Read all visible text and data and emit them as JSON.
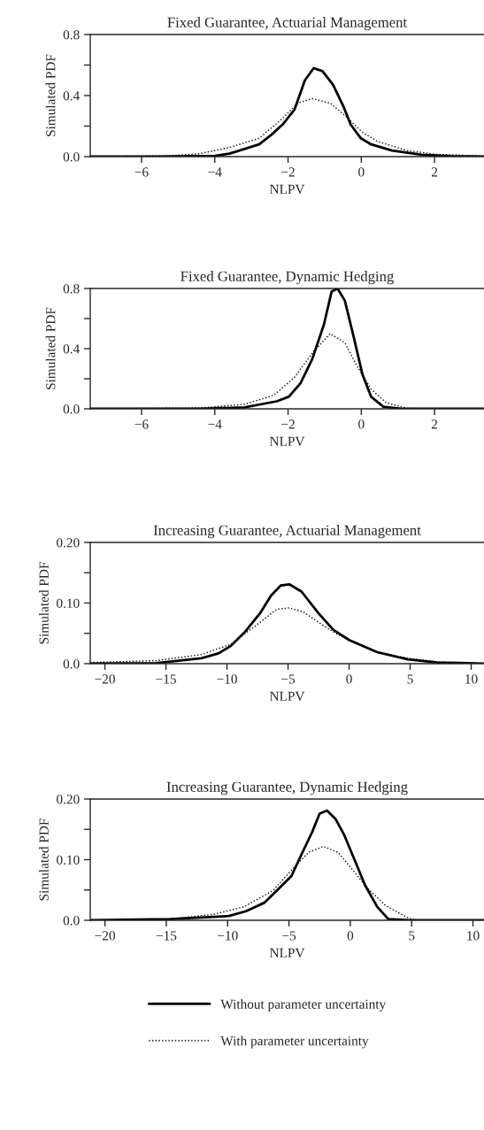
{
  "chart_data": [
    {
      "type": "line",
      "title": "Fixed Guarantee, Actuarial Management",
      "xlabel": "NLPV",
      "ylabel": "Simulated PDF",
      "xlim": [
        -7.4,
        3.35
      ],
      "xticks": [
        {
          "value": -6,
          "label": "−6"
        },
        {
          "value": -4,
          "label": "−4"
        },
        {
          "value": -2,
          "label": "−2"
        },
        0,
        2
      ],
      "ylim": [
        0,
        0.8
      ],
      "yticks": [
        {
          "value": 0,
          "label": "0.0"
        },
        {
          "value": 0.2,
          "label": null
        },
        {
          "value": 0.4,
          "label": "0.4"
        },
        {
          "value": 0.6,
          "label": null
        },
        {
          "value": 0.8,
          "label": "0.8"
        }
      ],
      "series": [
        {
          "color": "#000000",
          "line_style": "solid",
          "x": [
            -7.39,
            -5.61,
            -4.0,
            -3.6,
            -3.19,
            -2.79,
            -2.47,
            -2.15,
            -1.82,
            -1.54,
            -1.3,
            -1.06,
            -0.77,
            -0.49,
            -0.29,
            -0.01,
            0.27,
            0.84,
            1.65,
            2.45,
            3.34
          ],
          "values": [
            0,
            0,
            0.005,
            0.02,
            0.05,
            0.08,
            0.14,
            0.21,
            0.31,
            0.5,
            0.58,
            0.56,
            0.47,
            0.33,
            0.21,
            0.12,
            0.08,
            0.04,
            0.012,
            0.004,
            0
          ]
        },
        {
          "color": "#000000",
          "line_style": "dotted",
          "x": [
            -7.39,
            -5.21,
            -4.4,
            -3.6,
            -2.79,
            -2.15,
            -1.74,
            -1.34,
            -0.85,
            -0.45,
            0.03,
            0.44,
            1.24,
            2.05,
            3.34
          ],
          "values": [
            0,
            0.006,
            0.02,
            0.06,
            0.12,
            0.25,
            0.35,
            0.38,
            0.35,
            0.27,
            0.16,
            0.1,
            0.04,
            0.015,
            0.004
          ]
        }
      ]
    },
    {
      "type": "line",
      "title": "Fixed Guarantee, Dynamic Hedging",
      "xlabel": "NLPV",
      "ylabel": "Simulated PDF",
      "xlim": [
        -7.4,
        3.35
      ],
      "xticks": [
        {
          "value": -6,
          "label": "−6"
        },
        {
          "value": -4,
          "label": "−4"
        },
        {
          "value": -2,
          "label": "−2"
        },
        0,
        2
      ],
      "ylim": [
        0,
        0.8
      ],
      "yticks": [
        {
          "value": 0,
          "label": "0.0"
        },
        {
          "value": 0.2,
          "label": null
        },
        {
          "value": 0.4,
          "label": "0.4"
        },
        {
          "value": 0.6,
          "label": null
        },
        {
          "value": 0.8,
          "label": "0.8"
        }
      ],
      "series": [
        {
          "color": "#000000",
          "line_style": "solid",
          "x": [
            -7.39,
            -4.4,
            -3.19,
            -2.31,
            -1.98,
            -1.66,
            -1.34,
            -1.02,
            -0.81,
            -0.65,
            -0.45,
            -0.21,
            0.03,
            0.27,
            0.6,
            1.08,
            3.34
          ],
          "values": [
            0,
            0,
            0.01,
            0.05,
            0.08,
            0.17,
            0.33,
            0.56,
            0.78,
            0.8,
            0.72,
            0.48,
            0.23,
            0.08,
            0.014,
            0,
            0
          ]
        },
        {
          "color": "#000000",
          "line_style": "dotted",
          "x": [
            -7.39,
            -4.4,
            -3.19,
            -2.39,
            -1.82,
            -1.34,
            -0.85,
            -0.45,
            -0.13,
            0.27,
            0.68,
            1.24,
            2.05
          ],
          "values": [
            0,
            0.006,
            0.03,
            0.09,
            0.21,
            0.37,
            0.5,
            0.44,
            0.29,
            0.13,
            0.04,
            0.004,
            0
          ]
        }
      ]
    },
    {
      "type": "line",
      "title": "Increasing Guarantee, Actuarial Management",
      "xlabel": "NLPV",
      "ylabel": "Simulated PDF",
      "xlim": [
        -21.2,
        11.05
      ],
      "xticks": [
        {
          "value": -20,
          "label": "−20"
        },
        {
          "value": -15,
          "label": "−15"
        },
        {
          "value": -10,
          "label": "−10"
        },
        {
          "value": -5,
          "label": "−5"
        },
        0,
        5,
        10
      ],
      "ylim": [
        0,
        0.2
      ],
      "yticks": [
        {
          "value": 0,
          "label": "0.0"
        },
        {
          "value": 0.05,
          "label": null
        },
        {
          "value": 0.1,
          "label": "0.10"
        },
        {
          "value": 0.15,
          "label": null
        },
        {
          "value": 0.2,
          "label": "0.20"
        }
      ],
      "series": [
        {
          "color": "#000000",
          "line_style": "solid",
          "x": [
            -21.2,
            -15.8,
            -12.1,
            -10.7,
            -9.7,
            -8.5,
            -7.3,
            -6.4,
            -5.6,
            -4.9,
            -3.9,
            -2.5,
            -1.3,
            0,
            2.3,
            4.8,
            7.2,
            11.0
          ],
          "values": [
            0,
            0.001,
            0.009,
            0.017,
            0.029,
            0.053,
            0.083,
            0.112,
            0.129,
            0.131,
            0.119,
            0.083,
            0.056,
            0.039,
            0.019,
            0.007,
            0.002,
            0
          ]
        },
        {
          "color": "#000000",
          "line_style": "dotted",
          "x": [
            -21.2,
            -15.8,
            -12.1,
            -9.7,
            -7.3,
            -5.9,
            -4.9,
            -3.7,
            -2.5,
            -1.0,
            0,
            2.3,
            4.8,
            7.2,
            11.0
          ],
          "values": [
            0.002,
            0.005,
            0.015,
            0.032,
            0.068,
            0.09,
            0.092,
            0.085,
            0.068,
            0.049,
            0.039,
            0.019,
            0.009,
            0.003,
            0
          ]
        }
      ]
    },
    {
      "type": "line",
      "title": "Increasing Guarantee, Dynamic Hedging",
      "xlabel": "NLPV",
      "ylabel": "Simulated PDF",
      "legend": "bottom",
      "xlim": [
        -21.2,
        10.9
      ],
      "xticks": [
        {
          "value": -20,
          "label": "−20"
        },
        {
          "value": -15,
          "label": "−15"
        },
        {
          "value": -10,
          "label": "−10"
        },
        {
          "value": -5,
          "label": "−5"
        },
        0,
        5,
        10
      ],
      "ylim": [
        0,
        0.2
      ],
      "yticks": [
        {
          "value": 0,
          "label": "0.0"
        },
        {
          "value": 0.05,
          "label": null
        },
        {
          "value": 0.1,
          "label": "0.10"
        },
        {
          "value": 0.15,
          "label": null
        },
        {
          "value": 0.2,
          "label": "0.20"
        }
      ],
      "series": [
        {
          "name": "Without parameter uncertainty",
          "color": "#000000",
          "line_style": "solid",
          "x": [
            -21.2,
            -14.7,
            -9.9,
            -8.5,
            -7.0,
            -5.8,
            -4.8,
            -3.9,
            -3.1,
            -2.5,
            -1.9,
            -1.2,
            -0.5,
            0.2,
            1.2,
            2.2,
            3.1,
            4.8,
            10.9
          ],
          "values": [
            0,
            0.002,
            0.007,
            0.015,
            0.029,
            0.053,
            0.073,
            0.112,
            0.146,
            0.176,
            0.181,
            0.167,
            0.141,
            0.107,
            0.058,
            0.022,
            0.002,
            0,
            0
          ]
        },
        {
          "name": "With parameter uncertainty",
          "color": "#000000",
          "line_style": "dotted",
          "x": [
            -21.2,
            -14.7,
            -11.1,
            -8.7,
            -6.3,
            -4.6,
            -3.4,
            -2.2,
            -1.0,
            0.2,
            1.4,
            2.9,
            4.6,
            5.3,
            10.9
          ],
          "values": [
            0,
            0.002,
            0.01,
            0.022,
            0.049,
            0.087,
            0.112,
            0.122,
            0.112,
            0.083,
            0.053,
            0.024,
            0.005,
            0,
            0
          ]
        }
      ]
    }
  ]
}
